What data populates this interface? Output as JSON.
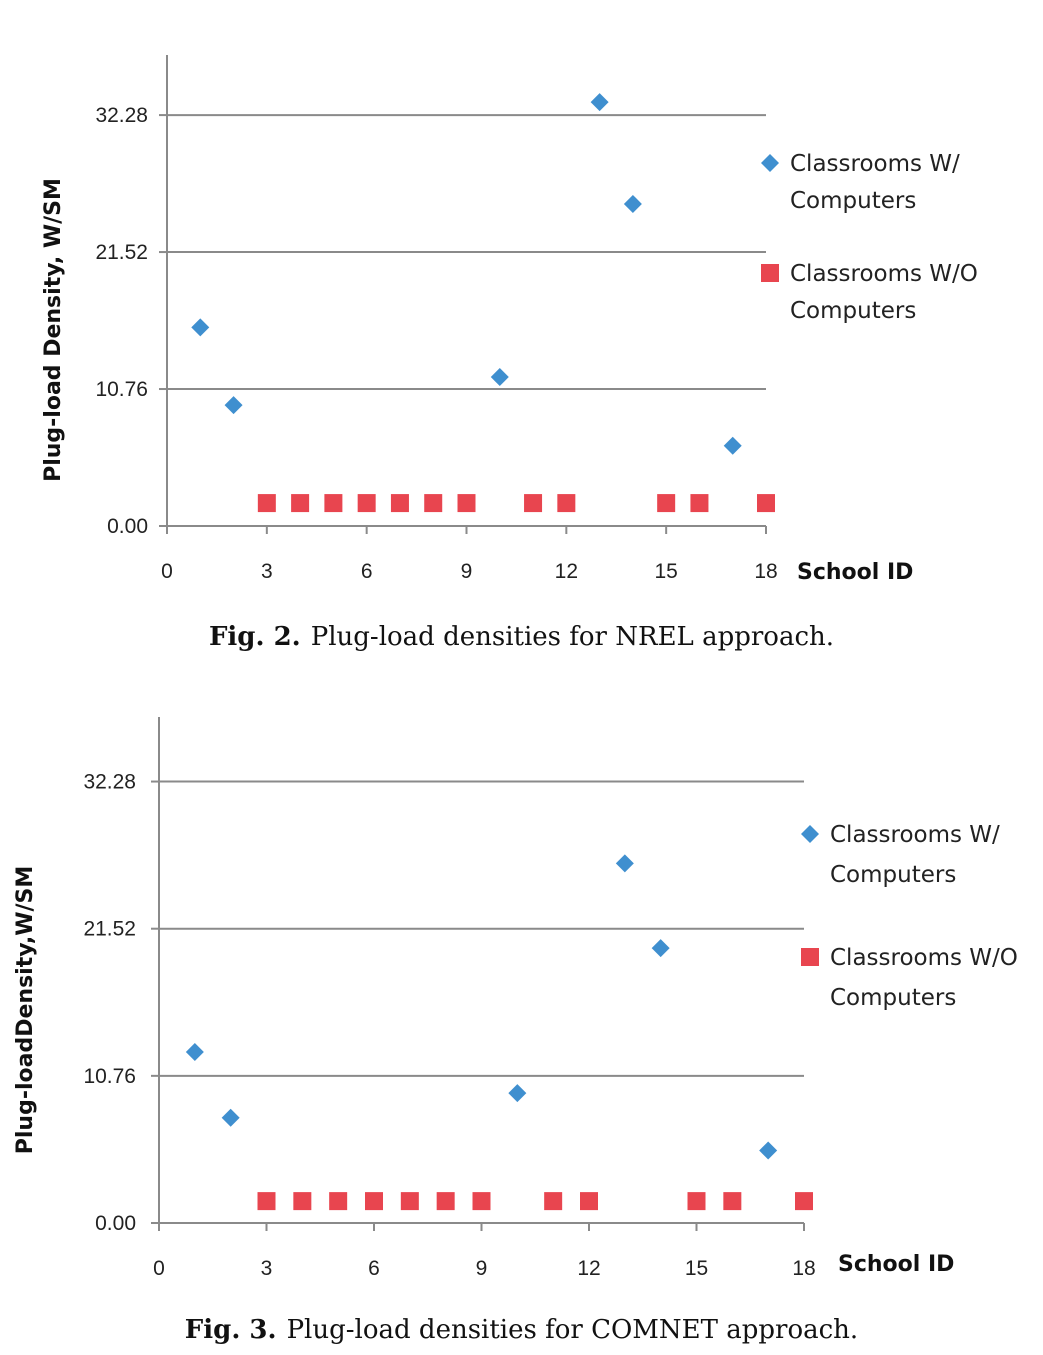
{
  "chart_data": [
    {
      "type": "scatter",
      "xlabel": "School ID",
      "ylabel": "Plug-load Density, W/SM",
      "xlim": [
        0,
        18
      ],
      "ylim": [
        0,
        37
      ],
      "x_ticks": [
        "0",
        "3",
        "6",
        "9",
        "12",
        "15",
        "18"
      ],
      "y_ticks": [
        "0.00",
        "10.76",
        "21.52",
        "32.28"
      ],
      "y_tick_values": [
        0,
        10.76,
        21.52,
        32.28
      ],
      "grid": "horizontal",
      "legend": "right",
      "series": [
        {
          "name": "Classrooms W/ Computers",
          "marker": "diamond",
          "color": "#3f8fcf",
          "points": [
            [
              1,
              15.6
            ],
            [
              2,
              9.5
            ],
            [
              10,
              11.7
            ],
            [
              13,
              33.3
            ],
            [
              14,
              25.3
            ],
            [
              17,
              6.3
            ]
          ]
        },
        {
          "name": "Classrooms W/O Computers",
          "marker": "square",
          "color": "#e8454f",
          "points": [
            [
              3,
              1.8
            ],
            [
              4,
              1.8
            ],
            [
              5,
              1.8
            ],
            [
              6,
              1.8
            ],
            [
              7,
              1.8
            ],
            [
              8,
              1.8
            ],
            [
              9,
              1.8
            ],
            [
              11,
              1.8
            ],
            [
              12,
              1.8
            ],
            [
              15,
              1.8
            ],
            [
              16,
              1.8
            ],
            [
              18,
              1.8
            ]
          ]
        }
      ]
    },
    {
      "type": "scatter",
      "xlabel": "School ID",
      "ylabel": "Plug-loadDensity,W/SM",
      "xlim": [
        0,
        18
      ],
      "ylim": [
        0,
        37
      ],
      "x_ticks": [
        "0",
        "3",
        "6",
        "9",
        "12",
        "15",
        "18"
      ],
      "y_ticks": [
        "0.00",
        "10.76",
        "21.52",
        "32.28"
      ],
      "y_tick_values": [
        0,
        10.76,
        21.52,
        32.28
      ],
      "grid": "horizontal",
      "legend": "right",
      "series": [
        {
          "name": "Classrooms W/ Computers",
          "marker": "diamond",
          "color": "#3f8fcf",
          "points": [
            [
              1,
              12.5
            ],
            [
              2,
              7.7
            ],
            [
              10,
              9.5
            ],
            [
              13,
              26.3
            ],
            [
              14,
              20.1
            ],
            [
              17,
              5.3
            ]
          ]
        },
        {
          "name": "Classrooms W/O Computers",
          "marker": "square",
          "color": "#e8454f",
          "points": [
            [
              3,
              1.6
            ],
            [
              4,
              1.6
            ],
            [
              5,
              1.6
            ],
            [
              6,
              1.6
            ],
            [
              7,
              1.6
            ],
            [
              8,
              1.6
            ],
            [
              9,
              1.6
            ],
            [
              11,
              1.6
            ],
            [
              12,
              1.6
            ],
            [
              15,
              1.6
            ],
            [
              16,
              1.6
            ],
            [
              18,
              1.6
            ]
          ]
        }
      ]
    }
  ],
  "captions": [
    {
      "label": "Fig. 2.",
      "text": "Plug-load densities for NREL approach."
    },
    {
      "label": "Fig. 3.",
      "text": "Plug-load densities for COMNET approach."
    }
  ]
}
